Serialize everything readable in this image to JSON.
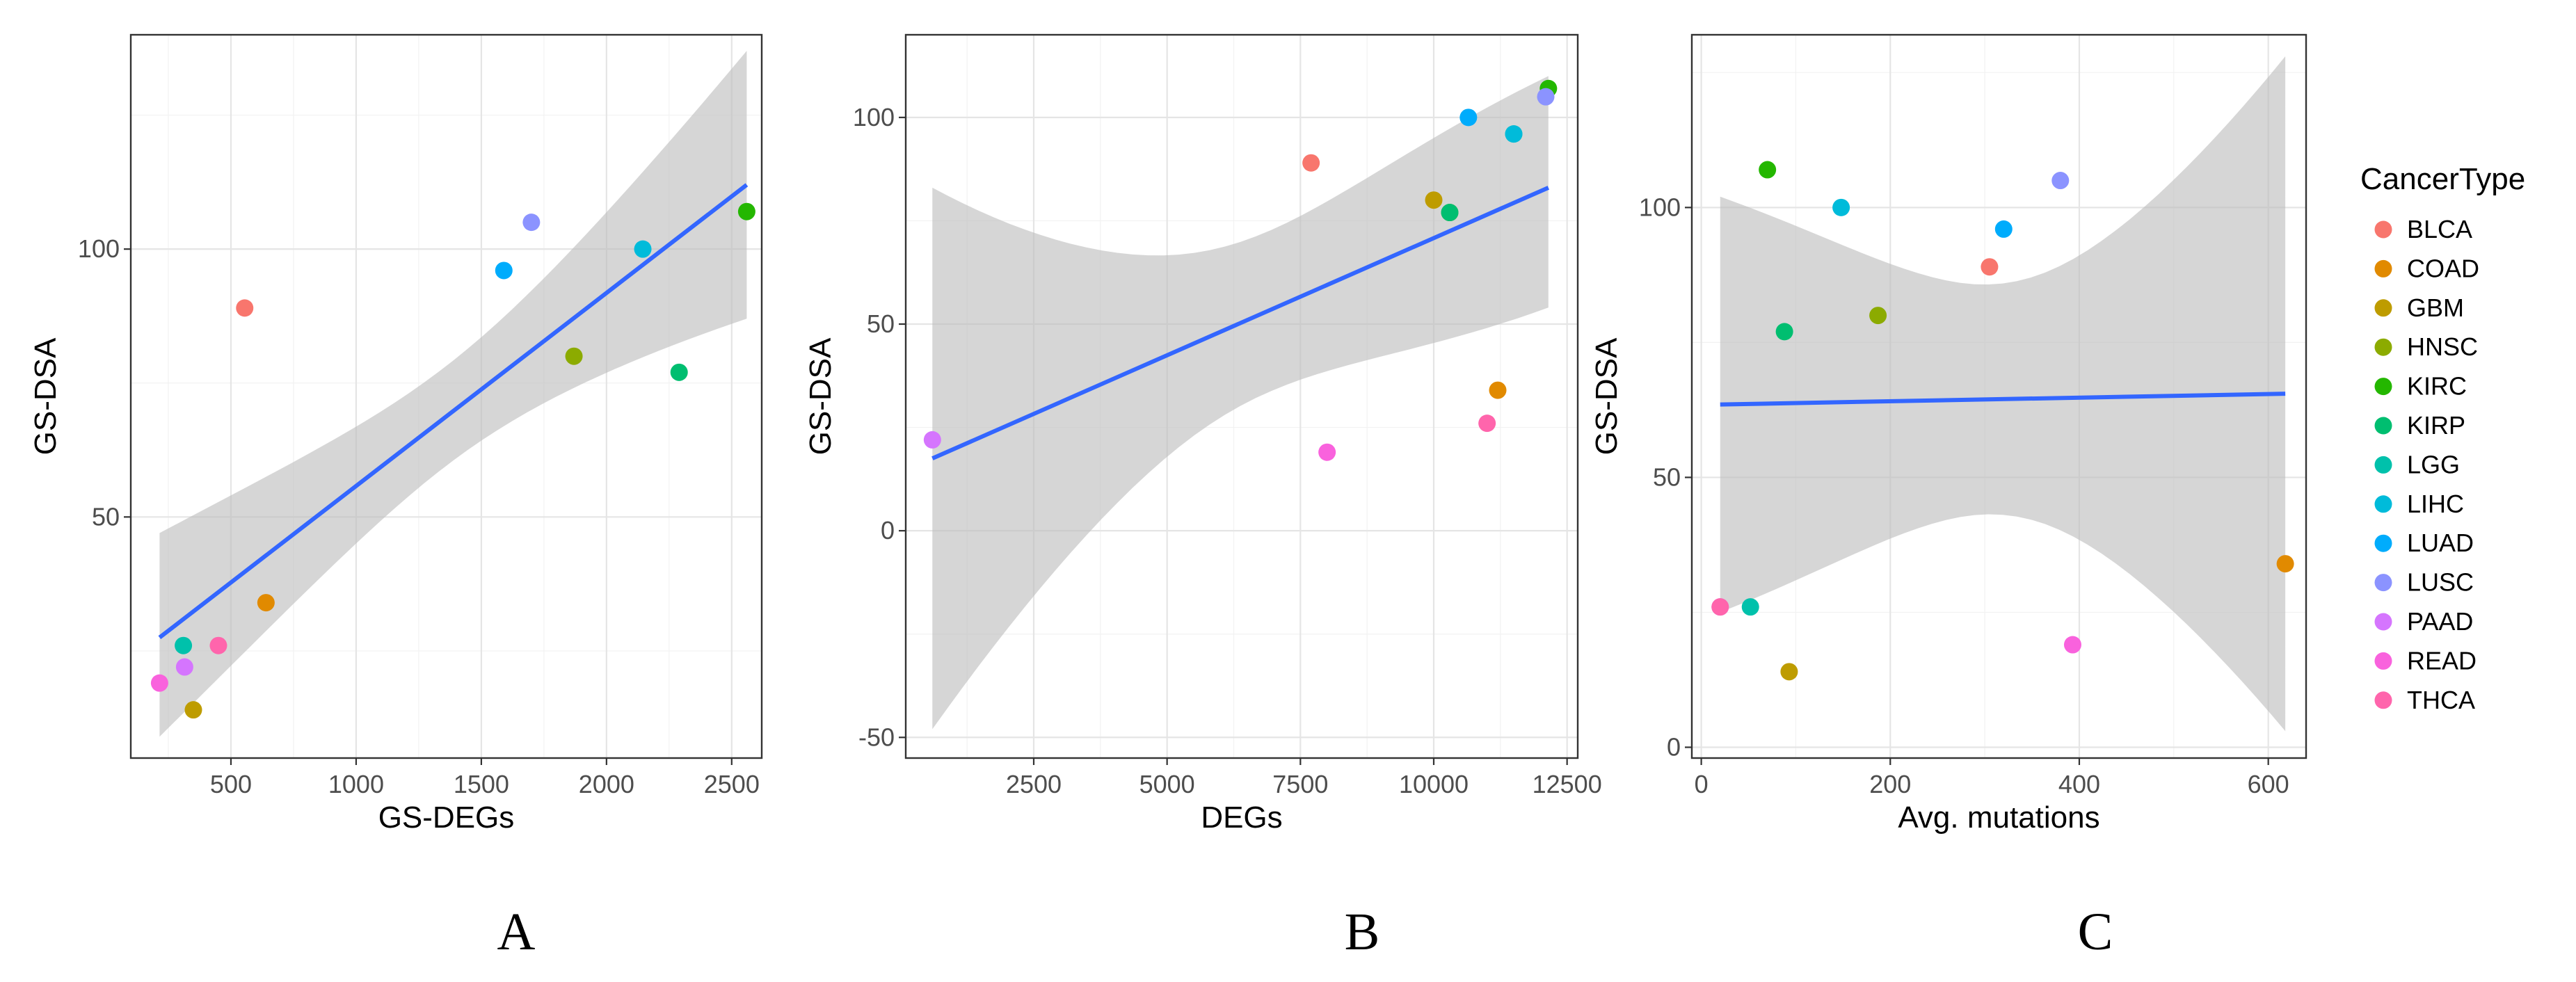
{
  "chart_data": [
    {
      "type": "scatter",
      "panel": "A",
      "xlabel": "GS-DEGs",
      "ylabel": "GS-DSA",
      "xlim": [
        100,
        2620
      ],
      "ylim": [
        5,
        140
      ],
      "xticks": [
        500,
        1000,
        1500,
        2000,
        2500
      ],
      "yticks": [
        50,
        100
      ],
      "points": [
        {
          "type": "BLCA",
          "x": 555,
          "y": 89
        },
        {
          "type": "COAD",
          "x": 640,
          "y": 34
        },
        {
          "type": "GBM",
          "x": 350,
          "y": 14
        },
        {
          "type": "HNSC",
          "x": 1870,
          "y": 80
        },
        {
          "type": "KIRC",
          "x": 2560,
          "y": 107
        },
        {
          "type": "KIRP",
          "x": 2290,
          "y": 77
        },
        {
          "type": "LGG",
          "x": 310,
          "y": 26
        },
        {
          "type": "LIHC",
          "x": 2145,
          "y": 100
        },
        {
          "type": "LUAD",
          "x": 1590,
          "y": 96
        },
        {
          "type": "LUSC",
          "x": 1700,
          "y": 105
        },
        {
          "type": "PAAD",
          "x": 315,
          "y": 22
        },
        {
          "type": "READ",
          "x": 215,
          "y": 19
        },
        {
          "type": "THCA",
          "x": 450,
          "y": 26
        }
      ],
      "fit": {
        "x": [
          215,
          2560
        ],
        "y": [
          27.5,
          112
        ],
        "lower": [
          9,
          87
        ],
        "upper": [
          47,
          137
        ]
      }
    },
    {
      "type": "scatter",
      "panel": "B",
      "xlabel": "DEGs",
      "ylabel": "GS-DSA",
      "xlim": [
        100,
        12700
      ],
      "ylim": [
        -55,
        120
      ],
      "xticks": [
        2500,
        5000,
        7500,
        10000,
        12500
      ],
      "yticks": [
        -50,
        0,
        50,
        100
      ],
      "points": [
        {
          "type": "BLCA",
          "x": 7700,
          "y": 89
        },
        {
          "type": "COAD",
          "x": 11200,
          "y": 34
        },
        {
          "type": "GBM",
          "x": 10000,
          "y": 80
        },
        {
          "type": "HNSC",
          "x": 10300,
          "y": 77
        },
        {
          "type": "KIRC",
          "x": 12150,
          "y": 107
        },
        {
          "type": "KIRP",
          "x": 10300,
          "y": 77
        },
        {
          "type": "LGG",
          "x": 11500,
          "y": 96
        },
        {
          "type": "LIHC",
          "x": 11500,
          "y": 96
        },
        {
          "type": "LUAD",
          "x": 10650,
          "y": 100
        },
        {
          "type": "LUSC",
          "x": 12100,
          "y": 105
        },
        {
          "type": "PAAD",
          "x": 600,
          "y": 22
        },
        {
          "type": "READ",
          "x": 8000,
          "y": 19
        },
        {
          "type": "THCA",
          "x": 11000,
          "y": 26
        }
      ],
      "fit": {
        "x": [
          600,
          12150
        ],
        "y": [
          17.5,
          83
        ],
        "lower": [
          -48,
          54
        ],
        "upper": [
          83,
          110
        ]
      }
    },
    {
      "type": "scatter",
      "panel": "C",
      "xlabel": "Avg. mutations",
      "ylabel": "GS-DSA",
      "xlim": [
        -10,
        640
      ],
      "ylim": [
        -2,
        132
      ],
      "xticks": [
        0,
        200,
        400,
        600
      ],
      "yticks": [
        0,
        50,
        100
      ],
      "points": [
        {
          "type": "BLCA",
          "x": 305,
          "y": 89
        },
        {
          "type": "COAD",
          "x": 618,
          "y": 34
        },
        {
          "type": "GBM",
          "x": 93,
          "y": 14
        },
        {
          "type": "HNSC",
          "x": 187,
          "y": 80
        },
        {
          "type": "KIRC",
          "x": 70,
          "y": 107
        },
        {
          "type": "KIRP",
          "x": 88,
          "y": 77
        },
        {
          "type": "LGG",
          "x": 52,
          "y": 26
        },
        {
          "type": "LIHC",
          "x": 148,
          "y": 100
        },
        {
          "type": "LUAD",
          "x": 320,
          "y": 96
        },
        {
          "type": "LUSC",
          "x": 380,
          "y": 105
        },
        {
          "type": "PAAD",
          "x": 20,
          "y": 26
        },
        {
          "type": "READ",
          "x": 393,
          "y": 19
        },
        {
          "type": "THCA",
          "x": 20,
          "y": 26
        }
      ],
      "fit": {
        "x": [
          20,
          618
        ],
        "y": [
          63.5,
          65.5
        ],
        "lower": [
          25,
          3
        ],
        "upper": [
          102,
          128
        ]
      }
    }
  ],
  "legend": {
    "title": "CancerType",
    "entries": [
      {
        "label": "BLCA",
        "color": "#F8766D"
      },
      {
        "label": "COAD",
        "color": "#E18A00"
      },
      {
        "label": "GBM",
        "color": "#BE9C00"
      },
      {
        "label": "HNSC",
        "color": "#8CAB00"
      },
      {
        "label": "KIRC",
        "color": "#24B700"
      },
      {
        "label": "KIRP",
        "color": "#00BE70"
      },
      {
        "label": "LGG",
        "color": "#00C1AB"
      },
      {
        "label": "LIHC",
        "color": "#00BBDA"
      },
      {
        "label": "LUAD",
        "color": "#00ACFC"
      },
      {
        "label": "LUSC",
        "color": "#8B93FF"
      },
      {
        "label": "PAAD",
        "color": "#D575FE"
      },
      {
        "label": "READ",
        "color": "#F962DD"
      },
      {
        "label": "THCA",
        "color": "#FF65AC"
      }
    ]
  }
}
